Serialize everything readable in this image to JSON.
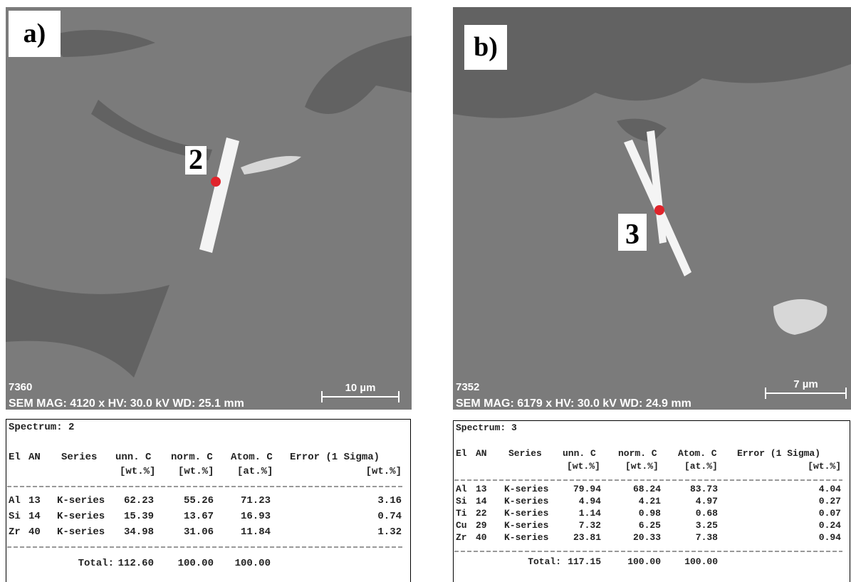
{
  "panels": [
    {
      "label": "a)",
      "point_label": "2",
      "image_id": "7360",
      "sem_info": "SEM MAG: 4120 x HV: 30.0 kV WD: 25.1 mm",
      "scale_bar": "10 µm",
      "table": {
        "spectrum": "Spectrum:  2",
        "header": [
          "El",
          "AN",
          "Series",
          "unn. C",
          "norm. C",
          "Atom. C",
          "Error (1 Sigma)"
        ],
        "units": [
          "[wt.%]",
          "[wt.%]",
          "[at.%]",
          "[wt.%]"
        ],
        "rows": [
          [
            "Al",
            "13",
            "K-series",
            "62.23",
            "55.26",
            "71.23",
            "3.16"
          ],
          [
            "Si",
            "14",
            "K-series",
            "15.39",
            "13.67",
            "16.93",
            "0.74"
          ],
          [
            "Zr",
            "40",
            "K-series",
            "34.98",
            "31.06",
            "11.84",
            "1.32"
          ]
        ],
        "total_label": "Total:",
        "total": [
          "112.60",
          "100.00",
          "100.00"
        ]
      }
    },
    {
      "label": "b)",
      "point_label": "3",
      "image_id": "7352",
      "sem_info": "SEM MAG: 6179 x HV: 30.0 kV WD: 24.9 mm",
      "scale_bar": "7 µm",
      "table": {
        "spectrum": "Spectrum:  3",
        "header": [
          "El",
          "AN",
          "Series",
          "unn. C",
          "norm. C",
          "Atom. C",
          "Error (1 Sigma)"
        ],
        "units": [
          "[wt.%]",
          "[wt.%]",
          "[at.%]",
          "[wt.%]"
        ],
        "rows": [
          [
            "Al",
            "13",
            "K-series",
            "79.94",
            "68.24",
            "83.73",
            "4.04"
          ],
          [
            "Si",
            "14",
            "K-series",
            "4.94",
            "4.21",
            "4.97",
            "0.27"
          ],
          [
            "Ti",
            "22",
            "K-series",
            "1.14",
            "0.98",
            "0.68",
            "0.07"
          ],
          [
            "Cu",
            "29",
            "K-series",
            "7.32",
            "6.25",
            "3.25",
            "0.24"
          ],
          [
            "Zr",
            "40",
            "K-series",
            "23.81",
            "20.33",
            "7.38",
            "0.94"
          ]
        ],
        "total_label": "Total:",
        "total": [
          "117.15",
          "100.00",
          "100.00"
        ]
      }
    }
  ]
}
